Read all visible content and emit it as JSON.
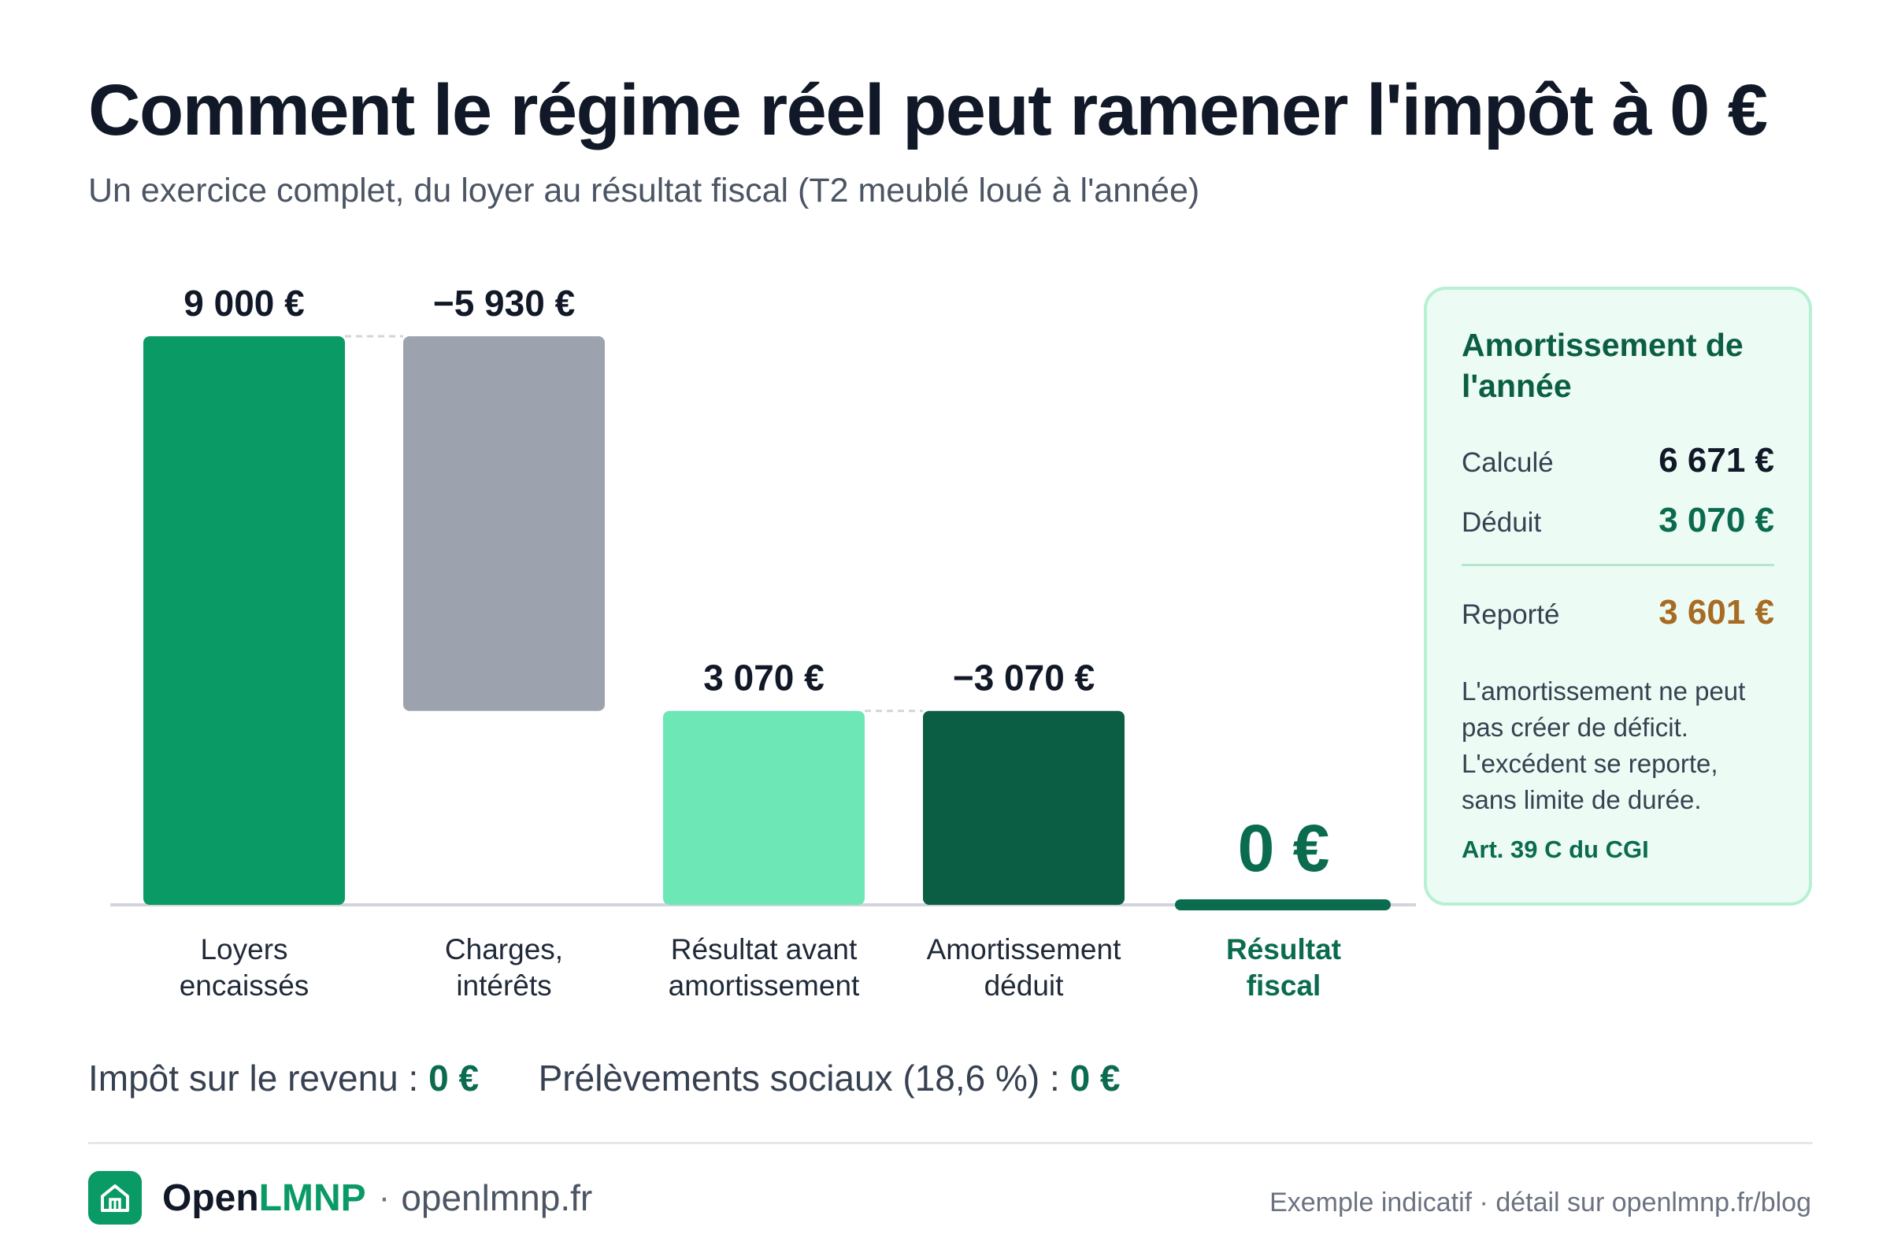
{
  "title": "Comment le régime réel peut ramener l'impôt à 0 €",
  "subtitle": "Un exercice complet, du loyer au résultat fiscal (T2 meublé loué à l'année)",
  "chart_data": {
    "type": "bar",
    "subtype": "waterfall",
    "unit": "€",
    "ylim": [
      0,
      9000
    ],
    "categories": [
      [
        "Loyers",
        "encaissés"
      ],
      [
        "Charges,",
        "intérêts"
      ],
      [
        "Résultat avant",
        "amortissement"
      ],
      [
        "Amortissement",
        "déduit"
      ],
      [
        "Résultat",
        "fiscal"
      ]
    ],
    "values": [
      9000,
      -5930,
      3070,
      -3070,
      0
    ],
    "value_labels": [
      "9 000 €",
      "−5 930 €",
      "3 070 €",
      "−3 070 €",
      "0 €"
    ],
    "bars": [
      {
        "base": 0,
        "top": 9000,
        "color": "#0a9a66"
      },
      {
        "base": 3070,
        "top": 9000,
        "color": "#9ca3af"
      },
      {
        "base": 0,
        "top": 3070,
        "color": "#6ee7b7"
      },
      {
        "base": 0,
        "top": 3070,
        "color": "#0b5e44"
      },
      {
        "base": 0,
        "top": 0,
        "color": "#0b6b4f"
      }
    ],
    "connectors": [
      [
        0,
        1,
        9000
      ],
      [
        2,
        3,
        3070
      ]
    ],
    "highlight_index": 4
  },
  "panel": {
    "title": "Amortissement de l'année",
    "rows": [
      {
        "label": "Calculé",
        "value": "6 671 €",
        "color": "#111827"
      },
      {
        "label": "Déduit",
        "value": "3 070 €",
        "color": "#0b6b4f"
      },
      {
        "label": "Reporté",
        "value": "3 601 €",
        "color": "#a86b23"
      }
    ],
    "note": "L'amortissement ne peut pas créer de déficit. L'excédent se reporte, sans limite de durée.",
    "reference": "Art. 39 C du CGI"
  },
  "taxes": {
    "income_label": "Impôt sur le revenu :",
    "income_value": "0 €",
    "social_label": "Prélèvements sociaux (18,6 %) :",
    "social_value": "0 €"
  },
  "footer": {
    "brand_part1": "Open",
    "brand_part2": "LMNP",
    "separator": "·",
    "url": "openlmnp.fr",
    "logo_icon": "house-icon",
    "note": "Exemple indicatif · détail sur openlmnp.fr/blog"
  }
}
